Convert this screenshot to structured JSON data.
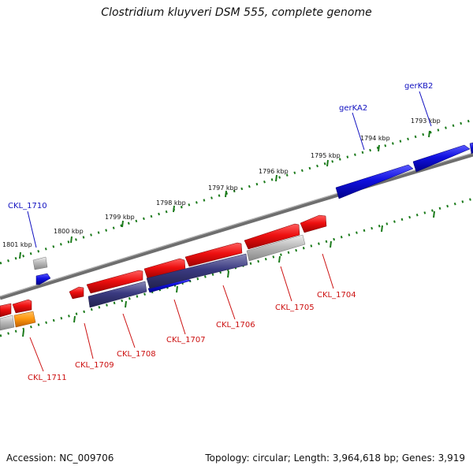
{
  "title": "Clostridium kluyveri DSM 555, complete genome",
  "footer": {
    "accession": "Accession: NC_009706",
    "summary": "Topology: circular; Length: 3,964,618 bp; Genes: 3,919"
  },
  "colors": {
    "forward_gene": "#1010e0",
    "reverse_gene": "#e01010",
    "rna_gene": "#ff9910",
    "feature_purple": "#3a3a80",
    "feature_gray": "#bbbbbb",
    "backbone": "#777777",
    "tick": "#1a7a1a",
    "forward_label": "#1010c0",
    "reverse_label": "#cc1010"
  },
  "ruler": {
    "unit": "kbp",
    "labels": [
      "1793 kbp",
      "1794 kbp",
      "1795 kbp",
      "1796 kbp",
      "1797 kbp",
      "1798 kbp",
      "1799 kbp",
      "1800 kbp",
      "1801 kbp"
    ]
  },
  "genes": {
    "forward_labels": [
      "gerKB2",
      "gerKA2",
      "CKL_1710"
    ],
    "reverse_labels": [
      "CKL_1704",
      "CKL_1705",
      "CKL_1706",
      "CKL_1707",
      "CKL_1708",
      "CKL_1709",
      "CKL_1711"
    ]
  }
}
